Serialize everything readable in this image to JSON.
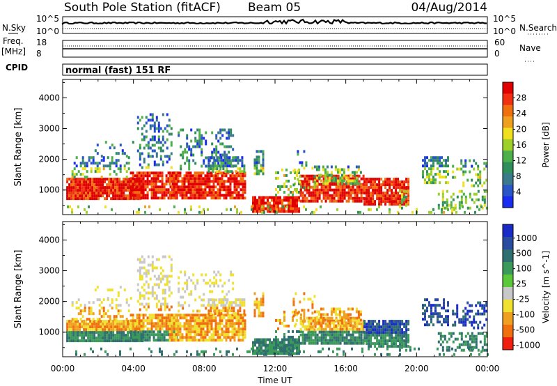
{
  "header": {
    "station": "South Pole Station (fitACF)",
    "beam": "Beam 05",
    "date": "04/Aug/2014"
  },
  "top_panels": {
    "nsky_label": "N.Sky",
    "nsky_ticks": [
      "10^5",
      "10^0"
    ],
    "nsearch_label": "N.Search",
    "freq_label": "Freq.",
    "freq_unit": "[MHz]",
    "freq_ticks": [
      "18",
      "8"
    ],
    "nave_label": "Nave",
    "nave_ticks": [
      "60",
      "0"
    ],
    "cpid_label": "CPID",
    "cpid_value": "normal (fast) 151 RF"
  },
  "chart_data": [
    {
      "type": "heatmap",
      "panel": "power",
      "ylabel": "Slant Range [km]",
      "xlabel": "",
      "yticks": [
        1000,
        2000,
        3000,
        4000
      ],
      "ylim": [
        200,
        4600
      ],
      "x_range": [
        "00:00",
        "24:00"
      ],
      "colorbar": {
        "label": "Power [dB]",
        "ticks": [
          4,
          8,
          12,
          16,
          20,
          24,
          28
        ],
        "colors": [
          "#1a2cf0",
          "#2a56c8",
          "#3b7a8a",
          "#2f8f5a",
          "#4db04a",
          "#9fd02a",
          "#f0e020",
          "#f0a020",
          "#f07010",
          "#f03010",
          "#e00000"
        ]
      }
    },
    {
      "type": "heatmap",
      "panel": "velocity",
      "ylabel": "Slant Range [km]",
      "xlabel": "Time UT",
      "yticks": [
        1000,
        2000,
        3000,
        4000
      ],
      "ylim": [
        200,
        4600
      ],
      "xticks": [
        "00:00",
        "04:00",
        "08:00",
        "12:00",
        "16:00",
        "20:00",
        "00:00"
      ],
      "colorbar": {
        "label": "Velocity [m s^-1]",
        "ticks": [
          "1000",
          "500",
          "100",
          "25",
          "-25",
          "-100",
          "-500",
          "-1000"
        ],
        "colors": [
          "#1a2cc8",
          "#2a4ca0",
          "#2f6f6f",
          "#3b9a5a",
          "#5ac83a",
          "#c8c8c8",
          "#f0e030",
          "#f0a020",
          "#f07010",
          "#f02010"
        ]
      }
    }
  ]
}
